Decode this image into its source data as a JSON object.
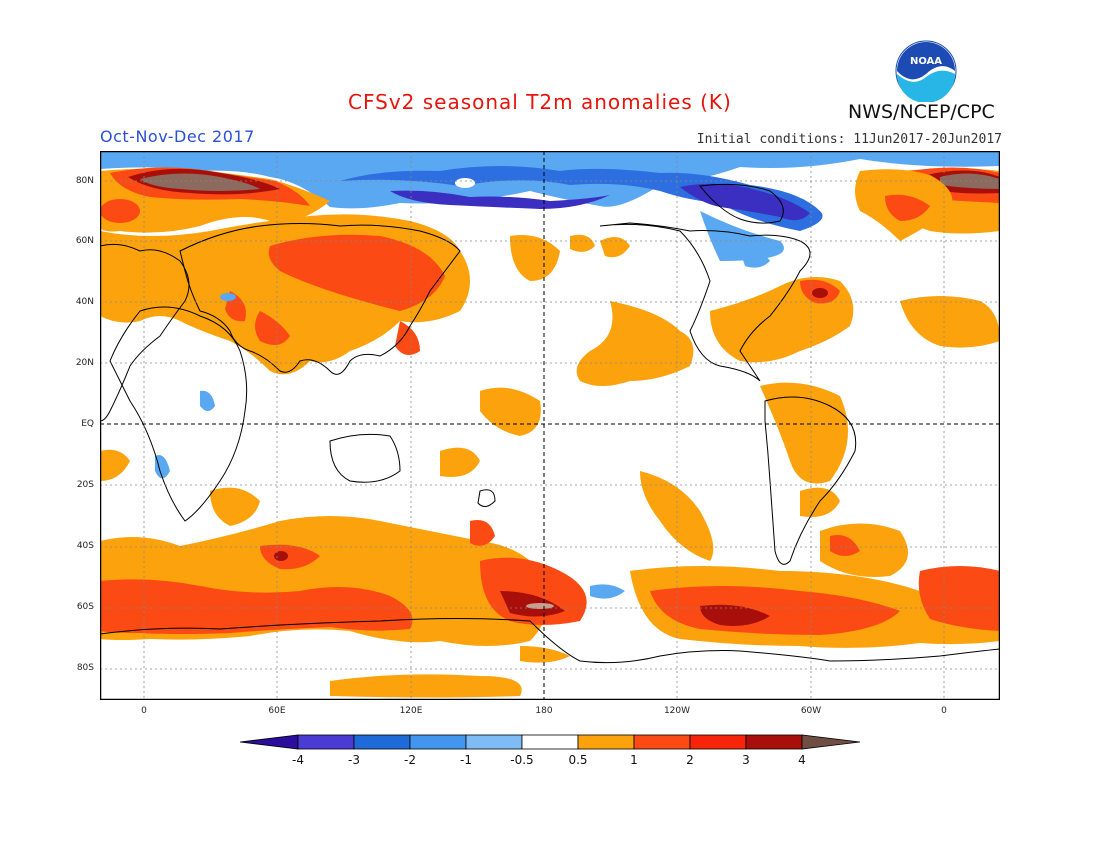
{
  "header": {
    "title": "CFSv2 seasonal T2m anomalies (K)",
    "season": "Oct-Nov-Dec 2017",
    "initial_conditions": "Initial conditions: 11Jun2017-20Jun2017",
    "agency": "NWS/NCEP/CPC",
    "logo_text": "NOAA"
  },
  "axes": {
    "lat_labels": [
      "80N",
      "60N",
      "40N",
      "20N",
      "EQ",
      "20S",
      "40S",
      "60S",
      "80S"
    ],
    "lon_labels": [
      "0",
      "60E",
      "120E",
      "180",
      "120W",
      "60W",
      "0"
    ]
  },
  "colorbar": {
    "labels": [
      "-4",
      "-3",
      "-2",
      "-1",
      "-0.5",
      "0.5",
      "1",
      "2",
      "3",
      "4"
    ],
    "colors": [
      "#2b0e9c",
      "#4a3bd2",
      "#1e6ad8",
      "#4296ef",
      "#7fbcf5",
      "#ffffff",
      "#fba20c",
      "#fb4a14",
      "#f7240a",
      "#a80f0a",
      "#c9a08e",
      "#704e44"
    ]
  },
  "colors": {
    "title": "#e8140c",
    "season": "#2a4fd8",
    "warm_light": "#fba20c",
    "warm_mid": "#fb4a14",
    "warm_dark": "#a80f0a",
    "warm_extreme": "#8c6a5e",
    "cool_light": "#5aa8f2",
    "cool_mid": "#2d6fe0",
    "cool_dark": "#3a2fc0"
  }
}
